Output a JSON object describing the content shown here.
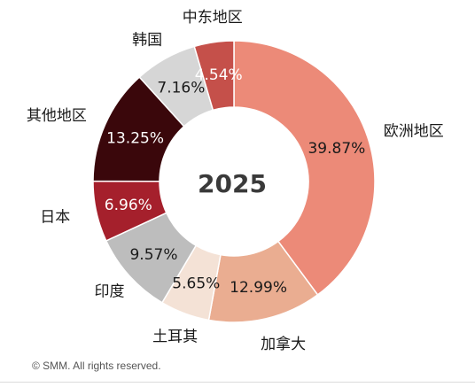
{
  "chart_data": {
    "type": "pie",
    "donut": true,
    "center_text": "2025",
    "categories": [
      "欧洲地区",
      "加拿大",
      "土耳其",
      "印度",
      "日本",
      "其他地区",
      "韩国",
      "中东地区"
    ],
    "values": [
      39.87,
      12.99,
      5.65,
      9.57,
      6.96,
      13.25,
      7.16,
      4.54
    ],
    "value_labels": [
      "39.87%",
      "12.99%",
      "5.65%",
      "9.57%",
      "6.96%",
      "13.25%",
      "7.16%",
      "4.54%"
    ],
    "colors": [
      "#ec8a78",
      "#eaad91",
      "#f4e2d6",
      "#bdbdbd",
      "#a5202c",
      "#3a070b",
      "#d6d6d6",
      "#c5504a"
    ],
    "label_colors": [
      "#1a1a1a",
      "#1a1a1a",
      "#1a1a1a",
      "#1a1a1a",
      "#ffffff",
      "#ffffff",
      "#1a1a1a",
      "#ffffff"
    ],
    "start_angle_deg": 0,
    "direction": "clockwise",
    "title": "",
    "legend": "none"
  },
  "footer": {
    "copyright": "© SMM. All rights reserved."
  }
}
